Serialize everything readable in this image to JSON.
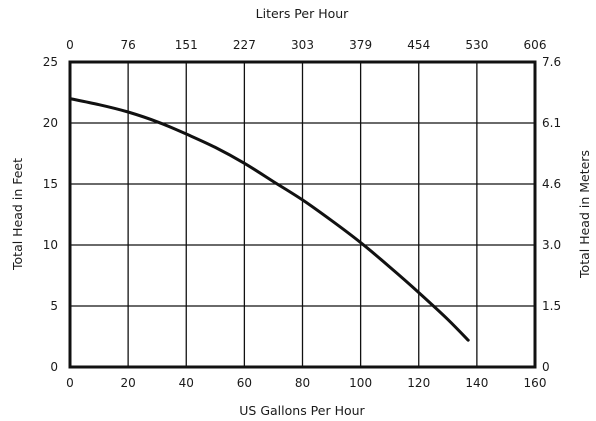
{
  "chart_data": {
    "type": "line",
    "xlabel": "US Gallons Per Hour",
    "ylabel": "Total Head in Feet",
    "x2label": "Liters Per Hour",
    "y2label": "Total Head in Meters",
    "xlim": [
      0,
      160
    ],
    "ylim": [
      0,
      25
    ],
    "grid": true,
    "x_ticks": [
      0,
      20,
      40,
      60,
      80,
      100,
      120,
      140,
      160
    ],
    "y_ticks": [
      0,
      5,
      10,
      15,
      20,
      25
    ],
    "x2_tick_labels": [
      "0",
      "76",
      "151",
      "227",
      "303",
      "379",
      "454",
      "530",
      "606"
    ],
    "y2_tick_labels": [
      "0",
      "1.5",
      "3.0",
      "4.6",
      "6.1",
      "7.6"
    ],
    "series": [
      {
        "x": [
          0,
          10,
          20,
          30,
          40,
          50,
          60,
          70,
          80,
          90,
          100,
          110,
          120,
          130,
          137
        ],
        "y": [
          22.0,
          21.5,
          20.9,
          20.1,
          19.1,
          18.0,
          16.7,
          15.2,
          13.7,
          12.0,
          10.2,
          8.2,
          6.1,
          3.9,
          2.2
        ]
      }
    ],
    "line_color": "#111111",
    "grid_color": "#111111"
  }
}
